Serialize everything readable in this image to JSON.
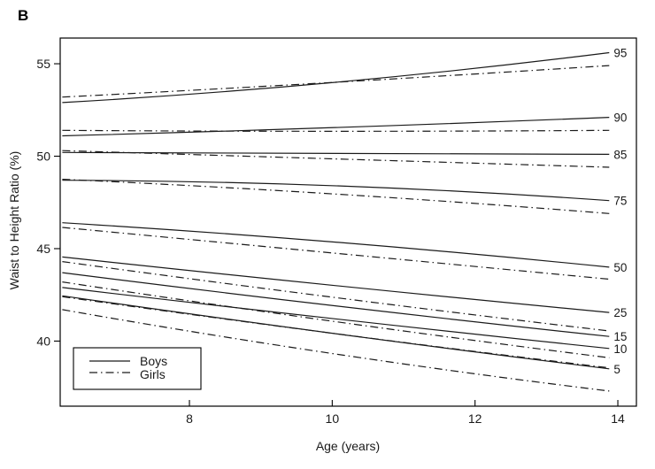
{
  "panel_label": "B",
  "chart_data": {
    "type": "line",
    "title": "",
    "xlabel": "Age (years)",
    "ylabel": "Waist to Height Ratio (%)",
    "xlim": [
      6.19,
      14.26
    ],
    "ylim": [
      36.48,
      56.39
    ],
    "x_ticks": [
      8,
      10,
      12,
      14
    ],
    "y_ticks": [
      40,
      45,
      50,
      55
    ],
    "grid": false,
    "box": true,
    "tick_style": {
      "x": "inward",
      "y": "outward"
    },
    "x_curve_start": 6.22,
    "x_mid": 10.05,
    "x_curve_end": 13.88,
    "percentile_labels": [
      "95",
      "90",
      "85",
      "75",
      "50",
      "25",
      "15",
      "10",
      "5"
    ],
    "legend": {
      "position": "bottom-left",
      "entries": [
        {
          "label": "Boys",
          "style": "solid"
        },
        {
          "label": "Girls",
          "style": "dashed"
        }
      ]
    },
    "series": [
      {
        "name": "Boys p95",
        "group": "Boys",
        "percentile": 95,
        "style": "solid",
        "values": {
          "start": 52.9,
          "mid": 54.0,
          "end": 55.6
        }
      },
      {
        "name": "Boys p90",
        "group": "Boys",
        "percentile": 90,
        "style": "solid",
        "values": {
          "start": 51.1,
          "mid": 51.55,
          "end": 52.1
        }
      },
      {
        "name": "Boys p85",
        "group": "Boys",
        "percentile": 85,
        "style": "solid",
        "values": {
          "start": 50.2,
          "mid": 50.15,
          "end": 50.1
        }
      },
      {
        "name": "Boys p75",
        "group": "Boys",
        "percentile": 75,
        "style": "solid",
        "values": {
          "start": 48.7,
          "mid": 48.4,
          "end": 47.6
        }
      },
      {
        "name": "Boys p50",
        "group": "Boys",
        "percentile": 50,
        "style": "solid",
        "values": {
          "start": 46.4,
          "mid": 45.35,
          "end": 44.0
        }
      },
      {
        "name": "Boys p25",
        "group": "Boys",
        "percentile": 25,
        "style": "solid",
        "values": {
          "start": 44.55,
          "mid": 43.0,
          "end": 41.55
        }
      },
      {
        "name": "Boys p15",
        "group": "Boys",
        "percentile": 15,
        "style": "solid",
        "values": {
          "start": 43.7,
          "mid": 41.9,
          "end": 40.25
        }
      },
      {
        "name": "Boys p10",
        "group": "Boys",
        "percentile": 10,
        "style": "solid",
        "values": {
          "start": 42.9,
          "mid": 41.2,
          "end": 39.6
        }
      },
      {
        "name": "Boys p5",
        "group": "Boys",
        "percentile": 5,
        "style": "solid",
        "values": {
          "start": 42.45,
          "mid": 40.4,
          "end": 38.5
        }
      },
      {
        "name": "Girls p95",
        "group": "Girls",
        "percentile": 95,
        "style": "dashed",
        "values": {
          "start": 53.2,
          "mid": 54.0,
          "end": 54.9
        }
      },
      {
        "name": "Girls p90",
        "group": "Girls",
        "percentile": 90,
        "style": "dashed",
        "values": {
          "start": 51.4,
          "mid": 51.35,
          "end": 51.4
        }
      },
      {
        "name": "Girls p85",
        "group": "Girls",
        "percentile": 85,
        "style": "dashed",
        "values": {
          "start": 50.3,
          "mid": 49.85,
          "end": 49.4
        }
      },
      {
        "name": "Girls p75",
        "group": "Girls",
        "percentile": 75,
        "style": "dashed",
        "values": {
          "start": 48.75,
          "mid": 47.95,
          "end": 46.9
        }
      },
      {
        "name": "Girls p50",
        "group": "Girls",
        "percentile": 50,
        "style": "dashed",
        "values": {
          "start": 46.15,
          "mid": 44.75,
          "end": 43.35
        }
      },
      {
        "name": "Girls p25",
        "group": "Girls",
        "percentile": 25,
        "style": "dashed",
        "values": {
          "start": 44.3,
          "mid": 42.35,
          "end": 40.55
        }
      },
      {
        "name": "Girls p15",
        "group": "Girls",
        "percentile": 15,
        "style": "dashed",
        "values": {
          "start": 43.2,
          "mid": 41.05,
          "end": 39.1
        }
      },
      {
        "name": "Girls p10",
        "group": "Girls",
        "percentile": 10,
        "style": "dashed",
        "values": {
          "start": 42.4,
          "mid": 40.4,
          "end": 38.55
        }
      },
      {
        "name": "Girls p5",
        "group": "Girls",
        "percentile": 5,
        "style": "dashed",
        "values": {
          "start": 41.7,
          "mid": 39.3,
          "end": 37.3
        }
      }
    ]
  }
}
